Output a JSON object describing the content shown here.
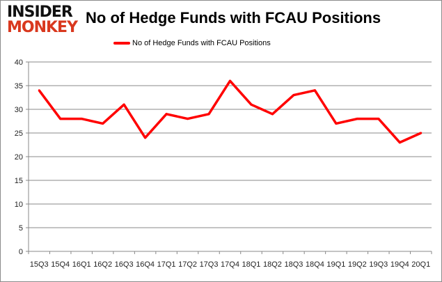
{
  "logo": {
    "line1": "INSIDER",
    "line2": "MONKEY"
  },
  "chart_data": {
    "type": "line",
    "title": "No of Hedge Funds with FCAU Positions",
    "categories": [
      "15Q3",
      "15Q4",
      "16Q1",
      "16Q2",
      "16Q3",
      "16Q4",
      "17Q1",
      "17Q2",
      "17Q3",
      "17Q4",
      "18Q1",
      "18Q2",
      "18Q3",
      "18Q4",
      "19Q1",
      "19Q2",
      "19Q3",
      "19Q4",
      "20Q1"
    ],
    "series": [
      {
        "name": "No of Hedge Funds with FCAU Positions",
        "color": "#ff0000",
        "values": [
          34,
          28,
          28,
          27,
          31,
          24,
          29,
          28,
          29,
          36,
          31,
          29,
          33,
          34,
          27,
          28,
          28,
          23,
          25
        ]
      }
    ],
    "ylim": [
      0,
      40
    ],
    "yticks": [
      0,
      5,
      10,
      15,
      20,
      25,
      30,
      35,
      40
    ],
    "grid": true,
    "legend": "top-center",
    "xlabel": "",
    "ylabel": ""
  }
}
